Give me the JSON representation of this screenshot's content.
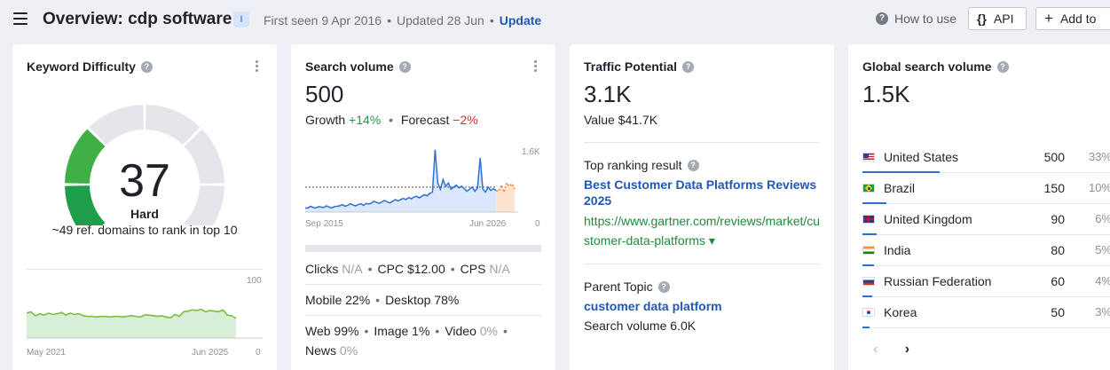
{
  "header": {
    "title": "Overview: cdp software",
    "intent_badge": "I",
    "first_seen": "First seen 9 Apr 2016",
    "updated": "Updated 28 Jun",
    "update_link": "Update",
    "how_to_use": "How to use",
    "api_label": "API",
    "add_label": "Add to"
  },
  "keyword_difficulty": {
    "title": "Keyword Difficulty",
    "value": "37",
    "label": "Hard",
    "description": "~49 ref. domains to rank in top 10",
    "chart": {
      "y_max_label": "100",
      "y_min_label": "0",
      "x_start_label": "May 2021",
      "x_end_label": "Jun 2025",
      "values": [
        38,
        40,
        34,
        37,
        35,
        38,
        36,
        37,
        39,
        35,
        38,
        36,
        37,
        34,
        33,
        33,
        32,
        33,
        33,
        32,
        33,
        33,
        32,
        33,
        34,
        33,
        32,
        35,
        35,
        34,
        33,
        34,
        32,
        31,
        36,
        33,
        40,
        41,
        43,
        42,
        44,
        40,
        42,
        41,
        40,
        43,
        35,
        34,
        30
      ],
      "color": "#7cbf3f"
    }
  },
  "search_volume": {
    "title": "Search volume",
    "value": "500",
    "growth_label": "Growth",
    "growth_value": "+14%",
    "forecast_label": "Forecast",
    "forecast_value": "−2%",
    "chart": {
      "y_max_label": "1.6K",
      "y_min_label": "0",
      "x_start_label": "Sep 2015",
      "x_end_label": "Jun 2026",
      "y_max": 1600,
      "average": 600,
      "values": [
        100,
        100,
        140,
        110,
        100,
        130,
        120,
        110,
        150,
        120,
        100,
        130,
        140,
        150,
        180,
        140,
        160,
        200,
        170,
        150,
        180,
        200,
        160,
        210,
        190,
        220,
        260,
        230,
        210,
        250,
        280,
        240,
        220,
        260,
        300,
        270,
        300,
        330,
        300,
        350,
        320,
        360,
        380,
        340,
        380,
        420,
        390,
        450,
        480,
        1500,
        700,
        550,
        780,
        620,
        700,
        550,
        600,
        650,
        580,
        620,
        560,
        500,
        550,
        600,
        500,
        580,
        1300,
        550,
        480,
        600,
        520,
        560,
        520
      ],
      "forecast": [
        500,
        650,
        480,
        700,
        620,
        680,
        550
      ],
      "line_color": "#2e6fd8",
      "forecast_color": "#f07f2b"
    },
    "clicks_label": "Clicks",
    "clicks_value": "N/A",
    "cpc_label": "CPC",
    "cpc_value": "$12.00",
    "cps_label": "CPS",
    "cps_value": "N/A",
    "mobile": "Mobile 22%",
    "desktop": "Desktop 78%",
    "web": "Web 99%",
    "image": "Image 1%",
    "video_label": "Video",
    "video_value": "0%",
    "news_label": "News",
    "news_value": "0%"
  },
  "traffic_potential": {
    "title": "Traffic Potential",
    "value": "3.1K",
    "traffic_value": "Value $41.7K",
    "top_result_label": "Top ranking result",
    "top_result_title": "Best Customer Data Platforms Reviews 2025",
    "top_result_url": "https://www.gartner.com/reviews/market/customer-data-platforms ▾",
    "parent_topic_label": "Parent Topic",
    "parent_topic": "customer data platform",
    "parent_volume": "Search volume 6.0K"
  },
  "global_volume": {
    "title": "Global search volume",
    "value": "1.5K",
    "countries": [
      {
        "name": "United States",
        "volume": "500",
        "share": "33%",
        "share_num": 33,
        "flag": "us"
      },
      {
        "name": "Brazil",
        "volume": "150",
        "share": "10%",
        "share_num": 10,
        "flag": "br"
      },
      {
        "name": "United Kingdom",
        "volume": "90",
        "share": "6%",
        "share_num": 6,
        "flag": "gb"
      },
      {
        "name": "India",
        "volume": "80",
        "share": "5%",
        "share_num": 5,
        "flag": "in"
      },
      {
        "name": "Russian Federation",
        "volume": "60",
        "share": "4%",
        "share_num": 4,
        "flag": "ru"
      },
      {
        "name": "Korea",
        "volume": "50",
        "share": "3%",
        "share_num": 3,
        "flag": "kr"
      }
    ],
    "bar_color": "#2e6fd8"
  }
}
